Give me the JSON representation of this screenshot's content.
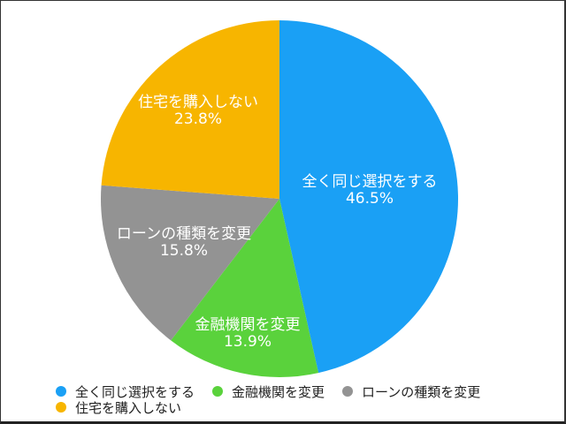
{
  "chart_data": {
    "type": "pie",
    "title": "",
    "categories": [
      "全く同じ選択をする",
      "金融機関を変更",
      "ローンの種類を変更",
      "住宅を購入しない"
    ],
    "values": [
      46.5,
      13.9,
      15.8,
      23.8
    ],
    "value_labels": [
      "46.5%",
      "13.9%",
      "15.8%",
      "23.8%"
    ],
    "colors": [
      "#1aa0f5",
      "#5ad23c",
      "#939393",
      "#f7b500"
    ],
    "start_angle_deg": 0,
    "direction": "clockwise",
    "legend_position": "bottom"
  },
  "slices": [
    {
      "label": "全く同じ選択をする",
      "percent": "46.5%"
    },
    {
      "label": "金融機関を変更",
      "percent": "13.9%"
    },
    {
      "label": "ローンの種類を変更",
      "percent": "15.8%"
    },
    {
      "label": "住宅を購入しない",
      "percent": "23.8%"
    }
  ],
  "legend": {
    "items": [
      {
        "label": "全く同じ選択をする",
        "color": "#1aa0f5"
      },
      {
        "label": "金融機関を変更",
        "color": "#5ad23c"
      },
      {
        "label": "ローンの種類を変更",
        "color": "#939393"
      },
      {
        "label": "住宅を購入しない",
        "color": "#f7b500"
      }
    ]
  }
}
